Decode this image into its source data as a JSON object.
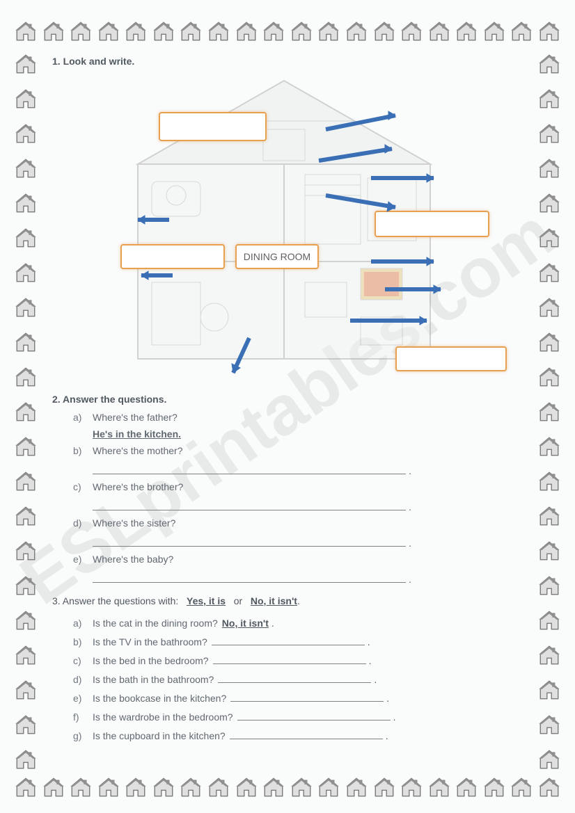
{
  "watermark": "ESLprintables.com",
  "border": {
    "icon_color": "#6a6a6a",
    "top_count": 20,
    "bottom_count": 20,
    "side_count": 21
  },
  "section1": {
    "title": "1. Look and write.",
    "prefilled_label": "DINING ROOM",
    "label_box_border": "#e8a050",
    "arrow_color": "#3b6fb5"
  },
  "section2": {
    "title": "2. Answer the questions.",
    "items": [
      {
        "letter": "a)",
        "q": "Where's the father?",
        "answer": "He's in the kitchen."
      },
      {
        "letter": "b)",
        "q": "Where's the mother?"
      },
      {
        "letter": "c)",
        "q": "Where's the brother?"
      },
      {
        "letter": "d)",
        "q": "Where's the sister?"
      },
      {
        "letter": "e)",
        "q": "Where's the baby?"
      }
    ]
  },
  "section3": {
    "prompt_prefix": "3. Answer the questions with:",
    "option_yes": "Yes, it is",
    "option_or": "or",
    "option_no": "No, it isn't",
    "items": [
      {
        "letter": "a)",
        "q": "Is the cat in the dining room?",
        "answer": "No, it isn't"
      },
      {
        "letter": "b)",
        "q": "Is the TV in the bathroom?"
      },
      {
        "letter": "c)",
        "q": "Is the bed in the bedroom?"
      },
      {
        "letter": "d)",
        "q": "Is the bath in the bathroom?"
      },
      {
        "letter": "e)",
        "q": "Is the bookcase in the kitchen?"
      },
      {
        "letter": "f)",
        "q": "Is the wardrobe in the bedroom?"
      },
      {
        "letter": "g)",
        "q": "Is the cupboard in the kitchen?"
      }
    ]
  },
  "colors": {
    "text": "#505860",
    "bg": "#fafbfb",
    "underline": "#808080"
  }
}
